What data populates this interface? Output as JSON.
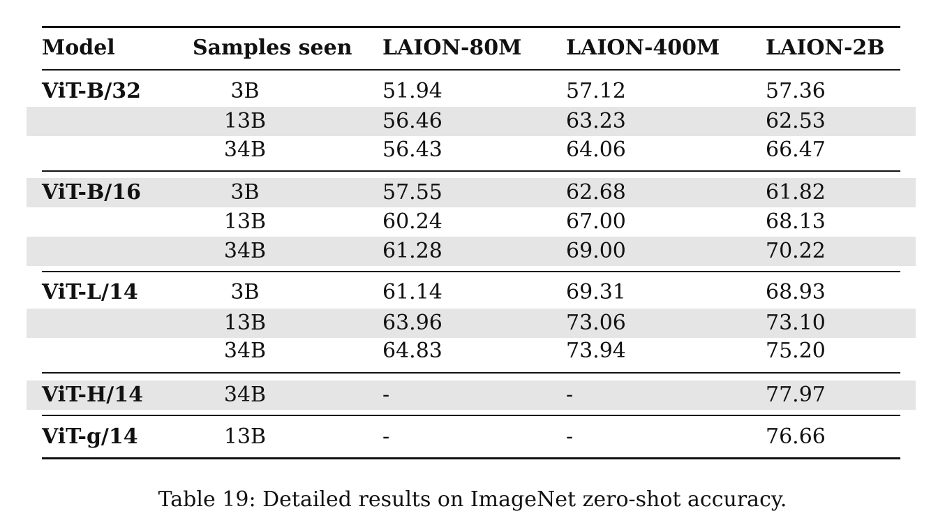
{
  "table": {
    "headers": [
      "Model",
      "Samples seen",
      "LAION-80M",
      "LAION-400M",
      "LAION-2B"
    ],
    "groups": [
      {
        "model": "ViT-B/32",
        "rows": [
          {
            "samples": "3B",
            "laion_80m": "51.94",
            "laion_400m": "57.12",
            "laion_2b": "57.36",
            "shaded": false
          },
          {
            "samples": "13B",
            "laion_80m": "56.46",
            "laion_400m": "63.23",
            "laion_2b": "62.53",
            "shaded": true
          },
          {
            "samples": "34B",
            "laion_80m": "56.43",
            "laion_400m": "64.06",
            "laion_2b": "66.47",
            "shaded": false
          }
        ]
      },
      {
        "model": "ViT-B/16",
        "rows": [
          {
            "samples": "3B",
            "laion_80m": "57.55",
            "laion_400m": "62.68",
            "laion_2b": "61.82",
            "shaded": true
          },
          {
            "samples": "13B",
            "laion_80m": "60.24",
            "laion_400m": "67.00",
            "laion_2b": "68.13",
            "shaded": false
          },
          {
            "samples": "34B",
            "laion_80m": "61.28",
            "laion_400m": "69.00",
            "laion_2b": "70.22",
            "shaded": true
          }
        ]
      },
      {
        "model": "ViT-L/14",
        "rows": [
          {
            "samples": "3B",
            "laion_80m": "61.14",
            "laion_400m": "69.31",
            "laion_2b": "68.93",
            "shaded": false
          },
          {
            "samples": "13B",
            "laion_80m": "63.96",
            "laion_400m": "73.06",
            "laion_2b": "73.10",
            "shaded": true
          },
          {
            "samples": "34B",
            "laion_80m": "64.83",
            "laion_400m": "73.94",
            "laion_2b": "75.20",
            "shaded": false
          }
        ]
      },
      {
        "model": "ViT-H/14",
        "rows": [
          {
            "samples": "34B",
            "laion_80m": "-",
            "laion_400m": "-",
            "laion_2b": "77.97",
            "shaded": true
          }
        ]
      },
      {
        "model": "ViT-g/14",
        "rows": [
          {
            "samples": "13B",
            "laion_80m": "-",
            "laion_400m": "-",
            "laion_2b": "76.66",
            "shaded": false
          }
        ]
      }
    ]
  },
  "caption": "Table 19: Detailed results on ImageNet zero-shot accuracy.",
  "colors": {
    "row_shade": "#e5e5e5",
    "rule": "#111111",
    "text": "#111111"
  }
}
